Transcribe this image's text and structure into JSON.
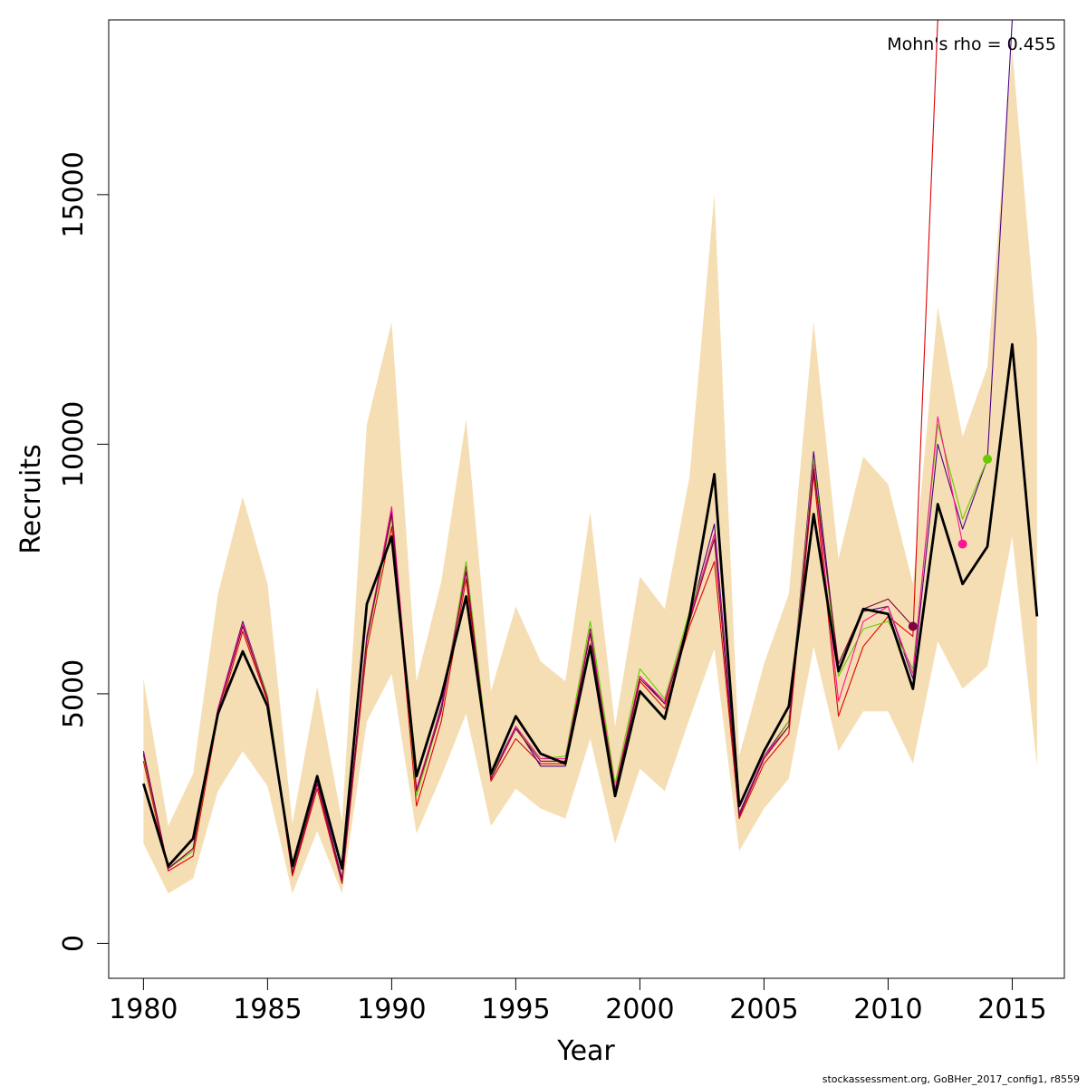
{
  "chart_data": {
    "type": "line",
    "xlabel": "Year",
    "ylabel": "Recruits",
    "xlim": [
      1978.6,
      2017.1
    ],
    "ylim": [
      -700,
      18500
    ],
    "x_ticks": [
      1980,
      1985,
      1990,
      1995,
      2000,
      2005,
      2010,
      2015
    ],
    "y_ticks": [
      0,
      5000,
      10000,
      15000
    ],
    "x_tick_labels": [
      "1980",
      "1985",
      "1990",
      "1995",
      "2000",
      "2005",
      "2010",
      "2015"
    ],
    "y_tick_labels": [
      "0",
      "5000",
      "10000",
      "15000"
    ],
    "grid": false,
    "annotation": "Mohn's rho = 0.455",
    "confidence_band": {
      "color": "#F5DEB3",
      "x": [
        1980,
        1981,
        1982,
        1983,
        1984,
        1985,
        1986,
        1987,
        1988,
        1989,
        1990,
        1991,
        1992,
        1993,
        1994,
        1995,
        1996,
        1997,
        1998,
        1999,
        2000,
        2001,
        2002,
        2003,
        2004,
        2005,
        2006,
        2007,
        2008,
        2009,
        2010,
        2011,
        2012,
        2013,
        2014,
        2015,
        2016
      ],
      "lower": [
        2000,
        1000,
        1300,
        3050,
        3850,
        3150,
        1000,
        2250,
        1000,
        4450,
        5400,
        2200,
        3350,
        4600,
        2350,
        3100,
        2700,
        2500,
        4100,
        2000,
        3500,
        3050,
        4500,
        5900,
        1850,
        2700,
        3300,
        5950,
        3850,
        4650,
        4650,
        3600,
        6050,
        5100,
        5550,
        8150,
        3550
      ],
      "upper": [
        5300,
        2350,
        3400,
        7000,
        8950,
        7200,
        2400,
        5150,
        2450,
        10400,
        12450,
        5250,
        7250,
        10500,
        5050,
        6750,
        5650,
        5250,
        8650,
        4350,
        7350,
        6700,
        9350,
        15000,
        3750,
        5600,
        7000,
        12450,
        7700,
        9750,
        9200,
        7200,
        12750,
        10150,
        11550,
        17900,
        12100
      ]
    },
    "series": [
      {
        "color": "#000000",
        "x": [
          1980,
          1981,
          1982,
          1983,
          1984,
          1985,
          1986,
          1987,
          1988,
          1989,
          1990,
          1991,
          1992,
          1993,
          1994,
          1995,
          1996,
          1997,
          1998,
          1999,
          2000,
          2001,
          2002,
          2003,
          2004,
          2005,
          2006,
          2007,
          2008,
          2009,
          2010,
          2011,
          2012,
          2013,
          2014,
          2015,
          2016
        ],
        "values": [
          3200,
          1550,
          2100,
          4600,
          5850,
          4750,
          1550,
          3350,
          1500,
          6800,
          8150,
          3350,
          4950,
          6950,
          3400,
          4550,
          3800,
          3600,
          5950,
          2950,
          5050,
          4500,
          6550,
          9400,
          2750,
          3850,
          4750,
          8600,
          5450,
          6700,
          6600,
          5100,
          8800,
          7200,
          7950,
          12000,
          6550
        ],
        "marker": null
      },
      {
        "color": "#E00000",
        "x": [
          1980,
          1981,
          1982,
          1983,
          1984,
          1985,
          1986,
          1987,
          1988,
          1989,
          1990,
          1991,
          1992,
          1993,
          1994,
          1995,
          1996,
          1997,
          1998,
          1999,
          2000,
          2001,
          2002,
          2003,
          2004,
          2005,
          2006,
          2007,
          2008,
          2009,
          2010,
          2011,
          2012
        ],
        "values": [
          3650,
          1450,
          1750,
          4550,
          6250,
          4850,
          1350,
          3100,
          1200,
          5900,
          8350,
          2750,
          4450,
          7300,
          3250,
          4100,
          3600,
          3600,
          6000,
          3050,
          5250,
          4700,
          6350,
          7650,
          2500,
          3600,
          4200,
          9400,
          4550,
          5950,
          6550,
          6150,
          18500
        ],
        "marker": null
      },
      {
        "color": "#4B0082",
        "x": [
          1980,
          1981,
          1982,
          1983,
          1984,
          1985,
          1986,
          1987,
          1988,
          1989,
          1990,
          1991,
          1992,
          1993,
          1994,
          1995,
          1996,
          1997,
          1998,
          1999,
          2000,
          2001,
          2002,
          2003,
          2004,
          2005,
          2006,
          2007,
          2008,
          2009,
          2010,
          2011,
          2012,
          2013,
          2014,
          2015
        ],
        "values": [
          3850,
          1500,
          1900,
          4700,
          6450,
          4950,
          1450,
          3250,
          1300,
          6150,
          8650,
          3050,
          4750,
          7550,
          3350,
          4350,
          3550,
          3550,
          6300,
          3000,
          5350,
          4800,
          6550,
          8400,
          2600,
          3750,
          4450,
          9850,
          5500,
          6650,
          6750,
          5300,
          10000,
          8300,
          9700,
          18500
        ],
        "marker": null
      },
      {
        "color": "#66CC00",
        "x": [
          1980,
          1981,
          1982,
          1983,
          1984,
          1985,
          1986,
          1987,
          1988,
          1989,
          1990,
          1991,
          1992,
          1993,
          1994,
          1995,
          1996,
          1997,
          1998,
          1999,
          2000,
          2001,
          2002,
          2003,
          2004,
          2005,
          2006,
          2007,
          2008,
          2009,
          2010,
          2011,
          2012,
          2013,
          2014
        ],
        "values": [
          3750,
          1500,
          1850,
          4650,
          6400,
          4950,
          1450,
          3200,
          1250,
          6050,
          8550,
          2950,
          4650,
          7650,
          3350,
          4300,
          3700,
          3750,
          6450,
          3200,
          5500,
          4900,
          6650,
          8100,
          2550,
          3700,
          4450,
          9700,
          5350,
          6300,
          6450,
          5500,
          10400,
          8500,
          9700
        ],
        "marker": {
          "year": 2014,
          "value": 9700
        }
      },
      {
        "color": "#FF1493",
        "x": [
          1980,
          1981,
          1982,
          1983,
          1984,
          1985,
          1986,
          1987,
          1988,
          1989,
          1990,
          1991,
          1992,
          1993,
          1994,
          1995,
          1996,
          1997,
          1998,
          1999,
          2000,
          2001,
          2002,
          2003,
          2004,
          2005,
          2006,
          2007,
          2008,
          2009,
          2010,
          2011,
          2012,
          2013
        ],
        "values": [
          3800,
          1500,
          1900,
          4700,
          6400,
          4900,
          1400,
          3200,
          1250,
          6100,
          8750,
          3100,
          4700,
          7500,
          3300,
          4350,
          3700,
          3700,
          6250,
          3100,
          5350,
          4850,
          6500,
          8200,
          2550,
          3750,
          4350,
          9600,
          4850,
          6450,
          6750,
          5400,
          10550,
          8000
        ],
        "marker": {
          "year": 2013,
          "value": 8000
        }
      },
      {
        "color": "#800040",
        "x": [
          1980,
          1981,
          1982,
          1983,
          1984,
          1985,
          1986,
          1987,
          1988,
          1989,
          1990,
          1991,
          1992,
          1993,
          1994,
          1995,
          1996,
          1997,
          1998,
          1999,
          2000,
          2001,
          2002,
          2003,
          2004,
          2005,
          2006,
          2007,
          2008,
          2009,
          2010,
          2011
        ],
        "values": [
          3800,
          1500,
          1900,
          4650,
          6350,
          4900,
          1400,
          3200,
          1250,
          6100,
          8600,
          3050,
          4650,
          7450,
          3300,
          4300,
          3650,
          3650,
          6200,
          3050,
          5300,
          4800,
          6450,
          8100,
          2550,
          3700,
          4350,
          9500,
          5600,
          6700,
          6900,
          6350
        ],
        "marker": {
          "year": 2011,
          "value": 6350
        }
      }
    ]
  },
  "footer": "stockassessment.org, GoBHer_2017_config1, r8559"
}
